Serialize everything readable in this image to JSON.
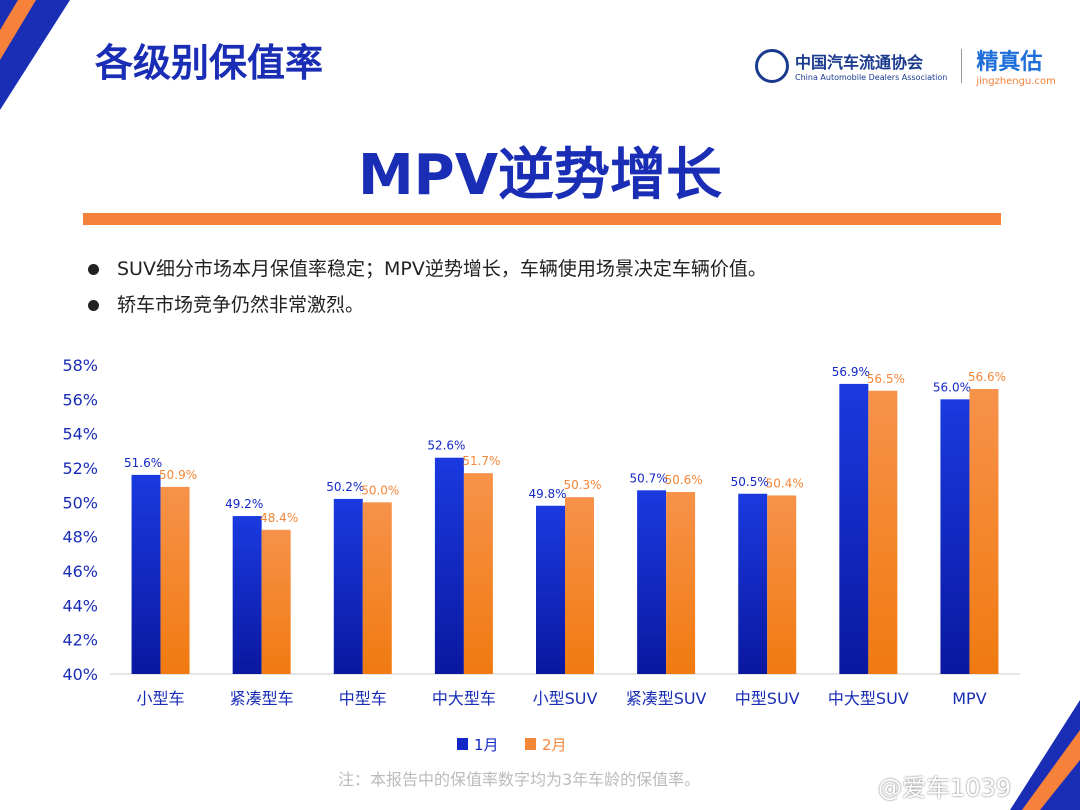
{
  "header": {
    "title": "各级别保值率",
    "logo_cada_cn": "中国汽车流通协会",
    "logo_cada_en": "China Automobile Dealers Association",
    "logo_jzg_cn": "精真估",
    "logo_jzg_en": "jingzhengu.com"
  },
  "headline": "MPV逆势增长",
  "bullets": [
    "SUV细分市场本月保值率稳定；MPV逆势增长，车辆使用场景决定车辆价值。",
    "轿车市场竞争仍然非常激烈。"
  ],
  "note": "注：本报告中的保值率数字均为3年车龄的保值率。",
  "watermark": "@爱车1039",
  "chart_data": {
    "type": "bar",
    "categories": [
      "小型车",
      "紧凑型车",
      "中型车",
      "中大型车",
      "小型SUV",
      "紧凑型SUV",
      "中型SUV",
      "中大型SUV",
      "MPV"
    ],
    "series": [
      {
        "name": "1月",
        "values": [
          51.6,
          49.2,
          50.2,
          52.6,
          49.8,
          50.7,
          50.5,
          56.9,
          56.0
        ],
        "color": "#1428c8"
      },
      {
        "name": "2月",
        "values": [
          50.9,
          48.4,
          50.0,
          51.7,
          50.3,
          50.6,
          50.4,
          56.5,
          56.6
        ],
        "color": "#f5873a"
      }
    ],
    "ylim": [
      40,
      58
    ],
    "yticks": [
      "40%",
      "42%",
      "44%",
      "46%",
      "48%",
      "50%",
      "52%",
      "54%",
      "56%",
      "58%"
    ],
    "grid": false,
    "legend": "bottom"
  }
}
